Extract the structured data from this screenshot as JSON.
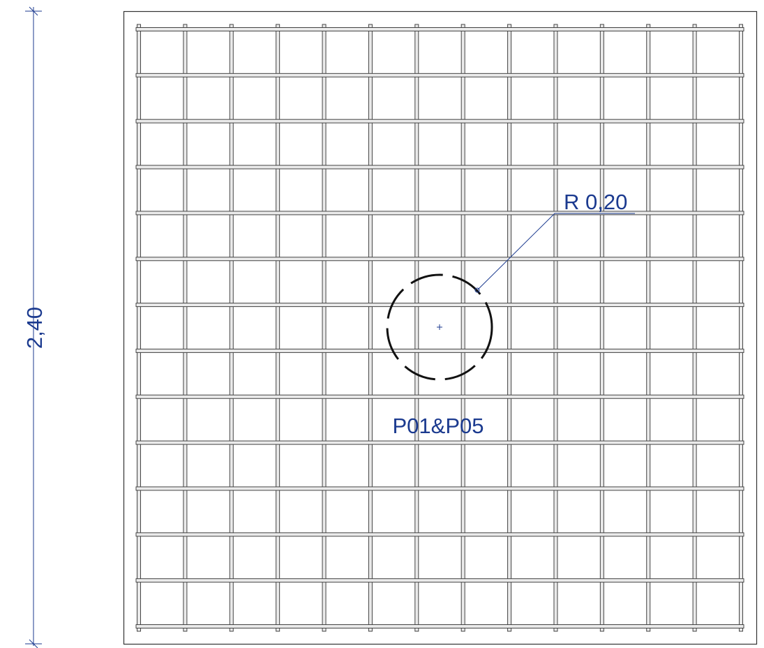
{
  "dimension": {
    "label": "2,40"
  },
  "annotations": {
    "radius": "R 0,20",
    "tag": "P01&P05"
  }
}
